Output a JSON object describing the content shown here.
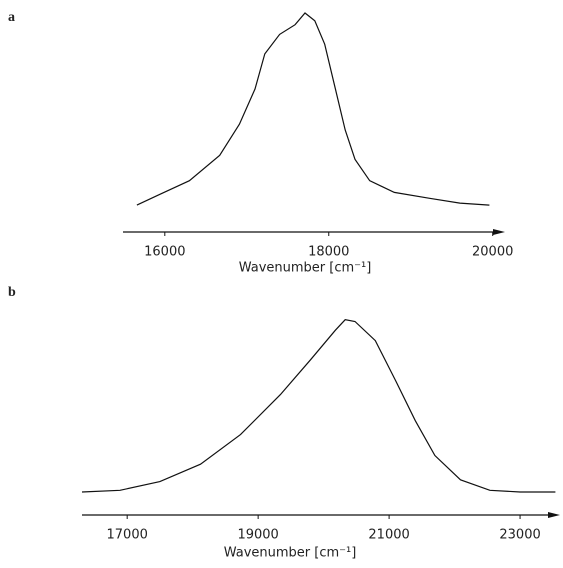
{
  "chart_data": [
    {
      "type": "line",
      "panel": "a",
      "xlabel": "Wavenumber [cm⁻¹]",
      "x": [
        15660,
        15940,
        16300,
        16670,
        16910,
        17100,
        17220,
        17400,
        17590,
        17710,
        17830,
        17950,
        18070,
        18200,
        18320,
        18500,
        18800,
        19230,
        19600,
        19960
      ],
      "values": [
        0.015,
        0.07,
        0.14,
        0.27,
        0.43,
        0.61,
        0.79,
        0.89,
        0.94,
        1.0,
        0.96,
        0.84,
        0.63,
        0.4,
        0.25,
        0.14,
        0.08,
        0.05,
        0.025,
        0.015
      ],
      "color": "#111111",
      "xlim": [
        15490,
        20150
      ],
      "xticks": [
        16000,
        18000,
        20000
      ],
      "ylim": [
        0,
        1
      ]
    },
    {
      "type": "line",
      "panel": "b",
      "xlabel": "Wavenumber [cm⁻¹]",
      "x": [
        16310,
        16890,
        17500,
        18120,
        18730,
        19340,
        19800,
        20180,
        20330,
        20480,
        20790,
        21100,
        21400,
        21700,
        22090,
        22540,
        23000,
        23540
      ],
      "values": [
        0,
        0.01,
        0.06,
        0.16,
        0.33,
        0.56,
        0.76,
        0.93,
        0.99,
        0.98,
        0.87,
        0.64,
        0.41,
        0.21,
        0.07,
        0.01,
        0,
        0
      ],
      "color": "#111111",
      "xlim": [
        16310,
        23610
      ],
      "xticks": [
        17000,
        19000,
        21000,
        23000
      ],
      "ylim": [
        0,
        1
      ]
    }
  ]
}
